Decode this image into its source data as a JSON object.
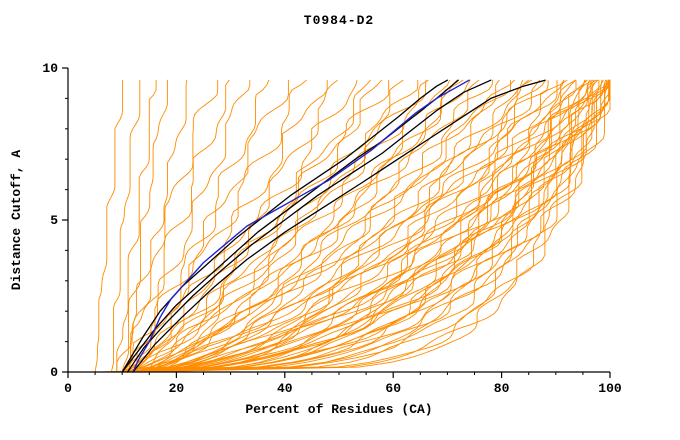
{
  "chart_data": {
    "type": "line",
    "title": "T0984-D2",
    "xlabel": "Percent of Residues (CA)",
    "ylabel": "Distance Cutoff, A",
    "xlim": [
      0,
      100
    ],
    "ylim": [
      0,
      10
    ],
    "x_ticks_major": [
      0,
      20,
      40,
      60,
      80,
      100
    ],
    "x_tick_minor_step": 5,
    "y_ticks_major": [
      0,
      5,
      10
    ],
    "y_tick_minor_step": 1,
    "grid": false,
    "legend": "none",
    "y_top_data": 9.6,
    "colors": {
      "ensemble": "#ff8c00",
      "highlight": "#2222cc",
      "reference": "#000000",
      "axis": "#000000",
      "background": "#ffffff"
    },
    "highlight_series": [
      {
        "name": "blue-model",
        "color_key": "highlight",
        "width": 1.4,
        "points": [
          [
            12,
            0
          ],
          [
            13,
            0.4
          ],
          [
            15,
            1.0
          ],
          [
            17,
            1.8
          ],
          [
            19,
            2.4
          ],
          [
            22,
            3.0
          ],
          [
            25,
            3.6
          ],
          [
            29,
            4.2
          ],
          [
            33,
            4.8
          ],
          [
            38,
            5.3
          ],
          [
            43,
            5.8
          ],
          [
            48,
            6.3
          ],
          [
            52,
            6.8
          ],
          [
            56,
            7.3
          ],
          [
            60,
            7.9
          ],
          [
            64,
            8.5
          ],
          [
            68,
            9.0
          ],
          [
            71,
            9.3
          ],
          [
            74,
            9.6
          ]
        ]
      }
    ],
    "reference_series": [
      {
        "name": "black-model-1",
        "color_key": "reference",
        "width": 1.3,
        "points": [
          [
            10,
            0
          ],
          [
            12,
            0.6
          ],
          [
            14,
            1.2
          ],
          [
            17,
            2.0
          ],
          [
            21,
            2.8
          ],
          [
            26,
            3.6
          ],
          [
            31,
            4.4
          ],
          [
            36,
            5.1
          ],
          [
            41,
            5.8
          ],
          [
            46,
            6.4
          ],
          [
            51,
            7.0
          ],
          [
            56,
            7.7
          ],
          [
            61,
            8.4
          ],
          [
            65,
            9.0
          ],
          [
            68,
            9.4
          ],
          [
            70,
            9.6
          ]
        ]
      },
      {
        "name": "black-model-2",
        "color_key": "reference",
        "width": 1.3,
        "points": [
          [
            11,
            0
          ],
          [
            14,
            0.8
          ],
          [
            18,
            1.6
          ],
          [
            23,
            2.5
          ],
          [
            28,
            3.3
          ],
          [
            34,
            4.2
          ],
          [
            40,
            5.0
          ],
          [
            46,
            5.8
          ],
          [
            52,
            6.5
          ],
          [
            58,
            7.2
          ],
          [
            63,
            7.9
          ],
          [
            68,
            8.6
          ],
          [
            73,
            9.2
          ],
          [
            78,
            9.6
          ]
        ]
      },
      {
        "name": "black-model-3",
        "color_key": "reference",
        "width": 1.3,
        "points": [
          [
            12,
            0
          ],
          [
            16,
            0.9
          ],
          [
            21,
            1.8
          ],
          [
            27,
            2.8
          ],
          [
            33,
            3.7
          ],
          [
            40,
            4.6
          ],
          [
            47,
            5.4
          ],
          [
            54,
            6.2
          ],
          [
            60,
            6.9
          ],
          [
            66,
            7.6
          ],
          [
            72,
            8.3
          ],
          [
            78,
            9.0
          ],
          [
            84,
            9.4
          ],
          [
            88,
            9.6
          ]
        ]
      },
      {
        "name": "black-model-4",
        "color_key": "reference",
        "width": 1.3,
        "points": [
          [
            10,
            0
          ],
          [
            13,
            0.7
          ],
          [
            16,
            1.4
          ],
          [
            20,
            2.2
          ],
          [
            25,
            3.0
          ],
          [
            30,
            3.8
          ],
          [
            35,
            4.6
          ],
          [
            41,
            5.4
          ],
          [
            47,
            6.2
          ],
          [
            53,
            7.0
          ],
          [
            58,
            7.6
          ],
          [
            63,
            8.3
          ],
          [
            68,
            9.0
          ],
          [
            72,
            9.6
          ]
        ]
      }
    ],
    "ensemble_series": {
      "name": "orange-predictions",
      "color_key": "ensemble",
      "width": 0.9,
      "curve_params_legend": "[x_at_y0, x_at_ytop, shape_exponent, wobble_amplitude, wobble_phase]",
      "curves": [
        [
          8,
          13,
          1.4,
          0.7,
          1
        ],
        [
          9,
          16,
          1.2,
          0.9,
          4
        ],
        [
          10,
          18,
          1.1,
          0.8,
          7
        ],
        [
          11,
          22,
          1.0,
          1.0,
          2
        ],
        [
          5,
          10,
          1.3,
          0.6,
          19
        ],
        [
          9,
          27,
          1.1,
          1.2,
          5
        ],
        [
          10,
          30,
          1.0,
          1.3,
          8
        ],
        [
          11,
          33,
          0.95,
          1.2,
          11
        ],
        [
          12,
          37,
          0.9,
          1.4,
          3
        ],
        [
          10,
          40,
          0.9,
          1.5,
          6
        ],
        [
          10,
          44,
          0.9,
          1.5,
          9
        ],
        [
          11,
          47,
          0.85,
          1.6,
          12
        ],
        [
          12,
          50,
          0.85,
          1.4,
          15
        ],
        [
          10,
          53,
          0.8,
          1.6,
          18
        ],
        [
          11,
          56,
          0.8,
          1.5,
          21
        ],
        [
          12,
          59,
          0.8,
          1.7,
          24
        ],
        [
          13,
          62,
          0.75,
          1.5,
          27
        ],
        [
          10,
          64,
          0.75,
          1.6,
          30
        ],
        [
          11,
          67,
          0.75,
          1.8,
          33
        ],
        [
          12,
          70,
          0.7,
          1.6,
          36
        ],
        [
          13,
          72,
          0.7,
          1.7,
          39
        ],
        [
          11,
          74,
          0.7,
          1.8,
          42
        ],
        [
          12,
          76,
          0.68,
          1.6,
          45
        ],
        [
          13,
          78,
          0.66,
          1.8,
          48
        ],
        [
          10,
          80,
          0.65,
          1.8,
          51
        ],
        [
          11,
          82,
          0.62,
          1.9,
          54
        ],
        [
          12,
          84,
          0.6,
          1.8,
          57
        ],
        [
          13,
          85,
          0.6,
          1.7,
          60
        ],
        [
          11,
          87,
          0.58,
          1.9,
          63
        ],
        [
          12,
          88,
          0.56,
          1.8,
          66
        ],
        [
          13,
          90,
          0.55,
          1.9,
          69
        ],
        [
          10,
          92,
          0.52,
          2.0,
          72
        ],
        [
          11,
          93,
          0.5,
          1.9,
          75
        ],
        [
          12,
          94,
          0.5,
          2.0,
          78
        ],
        [
          13,
          95,
          0.48,
          1.8,
          81
        ],
        [
          10,
          96,
          0.46,
          2.0,
          84
        ],
        [
          11,
          96,
          0.44,
          1.9,
          87
        ],
        [
          12,
          97,
          0.44,
          2.0,
          90
        ],
        [
          13,
          97,
          0.42,
          1.8,
          93
        ],
        [
          10,
          98,
          0.4,
          2.0,
          96
        ],
        [
          11,
          98,
          0.4,
          1.9,
          99
        ],
        [
          12,
          98,
          0.38,
          2.0,
          102
        ],
        [
          13,
          99,
          0.36,
          1.8,
          105
        ],
        [
          10,
          99,
          0.35,
          2.0,
          108
        ],
        [
          11,
          99,
          0.34,
          1.9,
          111
        ],
        [
          12,
          100,
          0.33,
          1.8,
          114
        ],
        [
          13,
          100,
          0.32,
          1.9,
          117
        ],
        [
          9,
          100,
          0.3,
          1.8,
          120
        ],
        [
          10,
          100,
          0.28,
          1.9,
          123
        ],
        [
          11,
          100,
          0.27,
          1.8,
          126
        ],
        [
          12,
          100,
          0.26,
          1.9,
          129
        ],
        [
          8,
          99,
          0.24,
          1.6,
          132
        ],
        [
          9,
          100,
          0.22,
          1.7,
          135
        ],
        [
          10,
          100,
          0.2,
          1.6,
          138
        ],
        [
          11,
          100,
          0.19,
          1.7,
          141
        ],
        [
          12,
          99,
          0.18,
          1.6,
          144
        ],
        [
          6,
          97,
          0.3,
          1.5,
          186
        ],
        [
          14,
          58,
          0.9,
          1.6,
          147
        ],
        [
          15,
          66,
          0.85,
          1.7,
          150
        ],
        [
          16,
          73,
          0.8,
          1.6,
          153
        ],
        [
          14,
          81,
          0.7,
          1.8,
          156
        ],
        [
          15,
          86,
          0.65,
          1.7,
          159
        ],
        [
          16,
          91,
          0.6,
          1.8,
          162
        ],
        [
          14,
          94,
          0.5,
          1.9,
          165
        ],
        [
          15,
          96,
          0.45,
          1.8,
          168
        ],
        [
          16,
          98,
          0.4,
          1.9,
          171
        ],
        [
          14,
          88,
          0.55,
          2.0,
          174
        ],
        [
          15,
          92,
          0.5,
          1.9,
          177
        ],
        [
          17,
          95,
          0.42,
          1.8,
          180
        ]
      ]
    }
  }
}
